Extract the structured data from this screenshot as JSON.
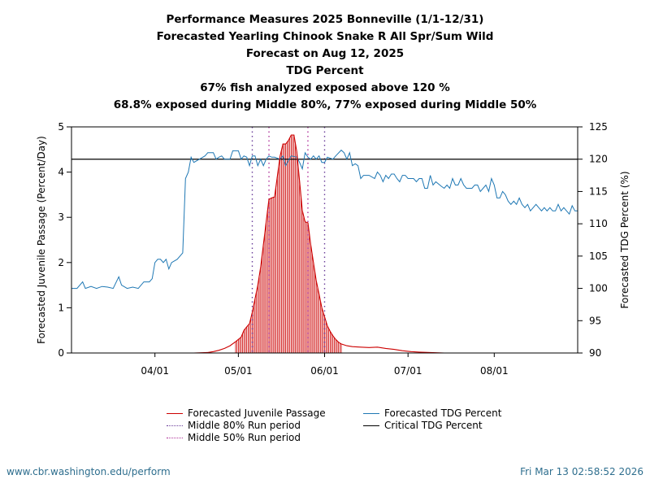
{
  "titles": [
    "Performance Measures 2025 Bonneville (1/1-12/31)",
    "Forecasted Yearling Chinook Snake R All Spr/Sum Wild",
    "Forecast on Aug 12, 2025",
    "TDG Percent",
    "67% fish analyzed exposed above 120 %",
    "68.8% exposed during Middle 80%, 77% exposed during Middle 50%"
  ],
  "footer": {
    "left": "www.cbr.washington.edu/perform",
    "right": "Fri Mar 13 02:58:52 2026"
  },
  "colors": {
    "passage": "#cc0000",
    "tdg": "#1f78b4",
    "mid80": "#6a3d9a",
    "mid50": "#b0339a",
    "critical": "#000000"
  },
  "chart_data": {
    "type": "line",
    "x_unit": "day of year 2025",
    "xlim": [
      61,
      243
    ],
    "x_ticks": [
      {
        "day": 91,
        "label": "04/01"
      },
      {
        "day": 121,
        "label": "05/01"
      },
      {
        "day": 152,
        "label": "06/01"
      },
      {
        "day": 182,
        "label": "07/01"
      },
      {
        "day": 213,
        "label": "08/01"
      }
    ],
    "y_left": {
      "label": "Forecasted Juvenile Passage (Percent/Day)",
      "lim": [
        0,
        5
      ],
      "ticks": [
        "0",
        "1",
        "2",
        "3",
        "4",
        "5"
      ]
    },
    "y_right": {
      "label": "Forecasted TDG Percent (%)",
      "lim": [
        90,
        125
      ],
      "ticks": [
        "90",
        "95",
        "100",
        "105",
        "110",
        "115",
        "120",
        "125"
      ]
    },
    "critical_tdg": 120,
    "middle80": [
      126,
      152
    ],
    "middle50": [
      132,
      146
    ],
    "series": [
      {
        "name": "Forecasted Juvenile Passage",
        "axis": "left",
        "points": [
          [
            61,
            0
          ],
          [
            105,
            0
          ],
          [
            110,
            0.01
          ],
          [
            112,
            0.03
          ],
          [
            114,
            0.06
          ],
          [
            116,
            0.1
          ],
          [
            118,
            0.16
          ],
          [
            120,
            0.25
          ],
          [
            122,
            0.35
          ],
          [
            123,
            0.5
          ],
          [
            124,
            0.58
          ],
          [
            125,
            0.65
          ],
          [
            126,
            0.9
          ],
          [
            127,
            1.2
          ],
          [
            128,
            1.5
          ],
          [
            129,
            1.9
          ],
          [
            130,
            2.4
          ],
          [
            131,
            2.9
          ],
          [
            132,
            3.4
          ],
          [
            133,
            3.43
          ],
          [
            134,
            3.45
          ],
          [
            135,
            3.9
          ],
          [
            136,
            4.35
          ],
          [
            137,
            4.62
          ],
          [
            138,
            4.62
          ],
          [
            139,
            4.7
          ],
          [
            140,
            4.82
          ],
          [
            141,
            4.82
          ],
          [
            142,
            4.45
          ],
          [
            143,
            3.8
          ],
          [
            144,
            3.15
          ],
          [
            145,
            2.9
          ],
          [
            146,
            2.88
          ],
          [
            147,
            2.4
          ],
          [
            148,
            2.0
          ],
          [
            149,
            1.6
          ],
          [
            150,
            1.3
          ],
          [
            151,
            1.0
          ],
          [
            152,
            0.8
          ],
          [
            153,
            0.6
          ],
          [
            154,
            0.48
          ],
          [
            155,
            0.38
          ],
          [
            156,
            0.3
          ],
          [
            157,
            0.24
          ],
          [
            158,
            0.2
          ],
          [
            160,
            0.16
          ],
          [
            162,
            0.14
          ],
          [
            165,
            0.13
          ],
          [
            168,
            0.12
          ],
          [
            171,
            0.13
          ],
          [
            174,
            0.1
          ],
          [
            177,
            0.08
          ],
          [
            180,
            0.05
          ],
          [
            183,
            0.03
          ],
          [
            186,
            0.02
          ],
          [
            190,
            0.01
          ],
          [
            195,
            0
          ],
          [
            243,
            0
          ]
        ]
      },
      {
        "name": "Forecasted TDG Percent",
        "axis": "right",
        "points": [
          [
            61,
            100
          ],
          [
            63,
            100
          ],
          [
            65,
            101
          ],
          [
            66,
            100
          ],
          [
            68,
            100.3
          ],
          [
            70,
            100
          ],
          [
            72,
            100.3
          ],
          [
            74,
            100.2
          ],
          [
            76,
            100
          ],
          [
            78,
            101.8
          ],
          [
            79,
            100.5
          ],
          [
            81,
            100
          ],
          [
            83,
            100.2
          ],
          [
            85,
            100
          ],
          [
            87,
            101
          ],
          [
            89,
            101
          ],
          [
            90,
            101.5
          ],
          [
            91,
            104
          ],
          [
            92,
            104.5
          ],
          [
            93,
            104.5
          ],
          [
            94,
            104
          ],
          [
            95,
            104.5
          ],
          [
            96,
            103
          ],
          [
            97,
            104
          ],
          [
            99,
            104.5
          ],
          [
            101,
            105.5
          ],
          [
            102,
            117
          ],
          [
            103,
            118
          ],
          [
            104,
            120.3
          ],
          [
            105,
            119.5
          ],
          [
            107,
            120
          ],
          [
            109,
            120.5
          ],
          [
            110,
            121
          ],
          [
            112,
            121
          ],
          [
            113,
            120
          ],
          [
            114,
            120.3
          ],
          [
            115,
            120.5
          ],
          [
            116,
            120
          ],
          [
            118,
            120
          ],
          [
            119,
            121.3
          ],
          [
            121,
            121.3
          ],
          [
            122,
            120
          ],
          [
            123,
            120.5
          ],
          [
            124,
            120.3
          ],
          [
            125,
            119
          ],
          [
            126,
            120.5
          ],
          [
            127,
            120.5
          ],
          [
            128,
            119
          ],
          [
            129,
            120
          ],
          [
            130,
            119
          ],
          [
            131,
            120
          ],
          [
            132,
            120.5
          ],
          [
            133,
            120.3
          ],
          [
            134,
            120.3
          ],
          [
            136,
            120
          ],
          [
            137,
            120.5
          ],
          [
            138,
            119
          ],
          [
            139,
            119.8
          ],
          [
            140,
            120.5
          ],
          [
            142,
            120.3
          ],
          [
            143,
            119.5
          ],
          [
            144,
            118.5
          ],
          [
            145,
            121
          ],
          [
            146,
            120.3
          ],
          [
            147,
            120
          ],
          [
            148,
            120.5
          ],
          [
            149,
            120
          ],
          [
            150,
            120.5
          ],
          [
            151,
            119.5
          ],
          [
            152,
            119.5
          ],
          [
            153,
            120.3
          ],
          [
            155,
            120
          ],
          [
            156,
            120.5
          ],
          [
            158,
            121.4
          ],
          [
            159,
            121
          ],
          [
            160,
            120
          ],
          [
            161,
            121
          ],
          [
            162,
            119
          ],
          [
            163,
            119.3
          ],
          [
            164,
            119
          ],
          [
            165,
            117
          ],
          [
            166,
            117.5
          ],
          [
            167,
            117.5
          ],
          [
            168,
            117.5
          ],
          [
            170,
            117
          ],
          [
            171,
            118
          ],
          [
            172,
            117.5
          ],
          [
            173,
            116.5
          ],
          [
            174,
            117.5
          ],
          [
            175,
            117
          ],
          [
            176,
            117.7
          ],
          [
            177,
            117.7
          ],
          [
            178,
            117
          ],
          [
            179,
            116.5
          ],
          [
            180,
            117.5
          ],
          [
            181,
            117.5
          ],
          [
            182,
            117
          ],
          [
            184,
            117
          ],
          [
            185,
            116.5
          ],
          [
            186,
            117
          ],
          [
            187,
            117
          ],
          [
            188,
            115.5
          ],
          [
            189,
            115.5
          ],
          [
            190,
            117.5
          ],
          [
            191,
            116
          ],
          [
            192,
            116.5
          ],
          [
            194,
            115.8
          ],
          [
            195,
            115.5
          ],
          [
            196,
            116
          ],
          [
            197,
            115.5
          ],
          [
            198,
            117
          ],
          [
            199,
            116
          ],
          [
            200,
            116
          ],
          [
            201,
            117
          ],
          [
            202,
            116
          ],
          [
            203,
            115.5
          ],
          [
            205,
            115.5
          ],
          [
            206,
            116
          ],
          [
            207,
            116
          ],
          [
            208,
            115
          ],
          [
            209,
            115.5
          ],
          [
            210,
            116
          ],
          [
            211,
            115
          ],
          [
            212,
            117
          ],
          [
            213,
            116
          ],
          [
            214,
            114
          ],
          [
            215,
            114
          ],
          [
            216,
            115
          ],
          [
            217,
            114.5
          ],
          [
            218,
            113.5
          ],
          [
            219,
            113
          ],
          [
            220,
            113.5
          ],
          [
            221,
            113
          ],
          [
            222,
            114
          ],
          [
            223,
            113
          ],
          [
            224,
            112.5
          ],
          [
            225,
            113
          ],
          [
            226,
            112
          ],
          [
            227,
            112.5
          ],
          [
            228,
            113
          ],
          [
            229,
            112.5
          ],
          [
            230,
            112
          ],
          [
            231,
            112.5
          ],
          [
            232,
            112
          ],
          [
            233,
            112.5
          ],
          [
            234,
            112
          ],
          [
            235,
            112
          ],
          [
            236,
            113
          ],
          [
            237,
            112
          ],
          [
            238,
            112.5
          ],
          [
            239,
            112
          ],
          [
            240,
            111.5
          ],
          [
            241,
            112.8
          ],
          [
            242,
            112
          ],
          [
            243,
            112
          ]
        ]
      }
    ],
    "legend": [
      {
        "label": "Forecasted Juvenile Passage",
        "style": "line",
        "color": "#cc0000"
      },
      {
        "label": "Forecasted TDG Percent",
        "style": "line",
        "color": "#1f78b4"
      },
      {
        "label": "Middle 80% Run period",
        "style": "dotted",
        "color": "#6a3d9a"
      },
      {
        "label": "Critical TDG Percent",
        "style": "line",
        "color": "#000000"
      },
      {
        "label": "Middle 50% Run period",
        "style": "dotted",
        "color": "#b0339a"
      }
    ]
  }
}
